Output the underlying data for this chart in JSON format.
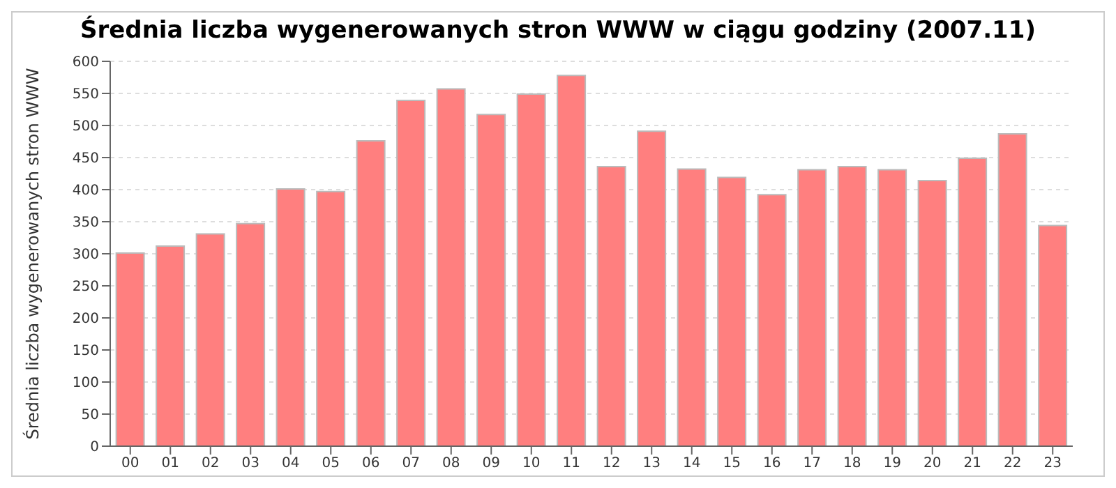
{
  "chart_data": {
    "type": "bar",
    "title": "Średnia liczba wygenerowanych stron WWW w ciągu godziny (2007.11)",
    "ylabel": "Średnia liczba wygenerowanych stron WWW",
    "categories": [
      "00",
      "01",
      "02",
      "03",
      "04",
      "05",
      "06",
      "07",
      "08",
      "09",
      "10",
      "11",
      "12",
      "13",
      "14",
      "15",
      "16",
      "17",
      "18",
      "19",
      "20",
      "21",
      "22",
      "23"
    ],
    "values": [
      301,
      312,
      331,
      347,
      401,
      397,
      476,
      539,
      557,
      517,
      549,
      578,
      436,
      491,
      432,
      419,
      392,
      431,
      436,
      431,
      414,
      449,
      487,
      344
    ],
    "color": "#ff7f7f",
    "ylim": [
      0,
      600
    ],
    "yticks": [
      0,
      50,
      100,
      150,
      200,
      250,
      300,
      350,
      400,
      450,
      500,
      550,
      600
    ],
    "grid": "y"
  }
}
